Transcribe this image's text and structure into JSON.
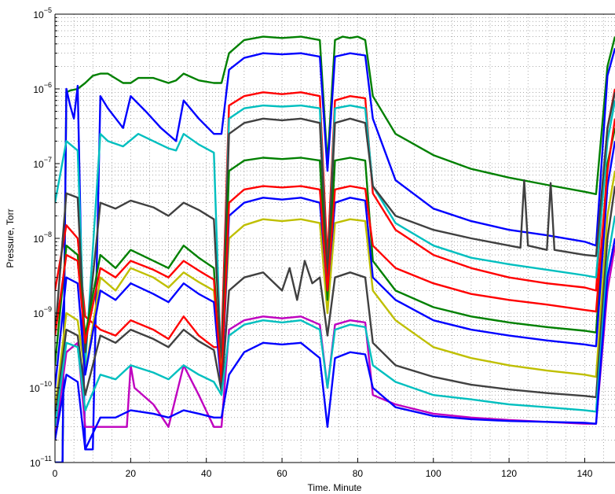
{
  "chart_data": {
    "type": "line",
    "title": "",
    "xlabel": "Time. Minute",
    "ylabel": "Pressure, Torr",
    "xlim": [
      0,
      148
    ],
    "ylim": [
      1e-11,
      1e-05
    ],
    "yscale": "log",
    "grid": true,
    "legend": "none",
    "x_ticks": [
      {
        "value": 0,
        "label": "0"
      },
      {
        "value": 20,
        "label": "20"
      },
      {
        "value": 40,
        "label": "40"
      },
      {
        "value": 60,
        "label": "60"
      },
      {
        "value": 80,
        "label": "80"
      },
      {
        "value": 100,
        "label": "100"
      },
      {
        "value": 120,
        "label": "120"
      },
      {
        "value": 140,
        "label": "140"
      }
    ],
    "y_ticks": [
      {
        "value": 1e-11,
        "base": "10",
        "exp": "−11"
      },
      {
        "value": 1e-10,
        "base": "10",
        "exp": "−10"
      },
      {
        "value": 1e-09,
        "base": "10",
        "exp": "−9"
      },
      {
        "value": 1e-08,
        "base": "10",
        "exp": "−8"
      },
      {
        "value": 1e-07,
        "base": "10",
        "exp": "−7"
      },
      {
        "value": 1e-06,
        "base": "10",
        "exp": "−6"
      },
      {
        "value": 1e-05,
        "base": "10",
        "exp": "−5"
      }
    ],
    "series": [
      {
        "color": "#008000",
        "x": [
          0,
          2,
          3,
          4,
          6,
          8,
          10,
          12,
          14,
          18,
          20,
          22,
          26,
          30,
          32,
          34,
          38,
          42,
          44,
          46,
          50,
          55,
          60,
          65,
          70,
          72,
          74,
          76,
          78,
          80,
          82,
          84,
          90,
          100,
          110,
          120,
          130,
          140,
          143,
          146,
          148
        ],
        "y": [
          1e-11,
          1e-11,
          9e-07,
          9.5e-07,
          1e-06,
          1.2e-06,
          1.5e-06,
          1.6e-06,
          1.6e-06,
          1.2e-06,
          1.2e-06,
          1.4e-06,
          1.4e-06,
          1.2e-06,
          1.3e-06,
          1.6e-06,
          1.3e-06,
          1.2e-06,
          1.2e-06,
          3e-06,
          4.5e-06,
          5e-06,
          4.8e-06,
          5e-06,
          4.5e-06,
          1e-07,
          4.5e-06,
          5e-06,
          4.8e-06,
          5e-06,
          4.5e-06,
          8e-07,
          2.5e-07,
          1.3e-07,
          8.5e-08,
          6.5e-08,
          5.2e-08,
          4.2e-08,
          3.9e-08,
          2e-06,
          5e-06
        ]
      },
      {
        "color": "#0000ff",
        "x": [
          0,
          2,
          3,
          4,
          5,
          6,
          8,
          10,
          12,
          14,
          18,
          20,
          24,
          28,
          32,
          34,
          38,
          42,
          44,
          46,
          50,
          55,
          60,
          65,
          70,
          72,
          74,
          78,
          82,
          84,
          90,
          100,
          110,
          120,
          130,
          140,
          143,
          146,
          148
        ],
        "y": [
          1e-11,
          1e-11,
          1e-06,
          6e-07,
          4e-07,
          1.1e-06,
          1.5e-11,
          1.5e-11,
          8e-07,
          5.5e-07,
          3e-07,
          8e-07,
          5e-07,
          3e-07,
          2e-07,
          7e-07,
          4e-07,
          2.5e-07,
          2.5e-07,
          1.8e-06,
          2.6e-06,
          3e-06,
          2.9e-06,
          3e-06,
          2.7e-06,
          8e-08,
          2.7e-06,
          3e-06,
          2.8e-06,
          4e-07,
          6e-08,
          2.5e-08,
          1.7e-08,
          1.3e-08,
          1.1e-08,
          9e-09,
          8e-09,
          1.5e-06,
          3.5e-06
        ]
      },
      {
        "color": "#ff0000",
        "x": [
          0,
          3,
          6,
          8,
          12,
          16,
          20,
          26,
          30,
          34,
          38,
          42,
          44,
          46,
          50,
          55,
          60,
          65,
          70,
          72,
          74,
          78,
          82,
          84,
          90,
          100,
          110,
          120,
          130,
          140,
          143,
          146,
          148
        ],
        "y": [
          2e-09,
          1.5e-08,
          1e-08,
          9e-10,
          6e-10,
          5e-10,
          8e-10,
          6e-10,
          4.5e-10,
          9e-10,
          5e-10,
          3.5e-10,
          3.5e-10,
          6e-07,
          8e-07,
          9e-07,
          8.5e-07,
          9e-07,
          8e-07,
          5e-09,
          7e-07,
          8e-07,
          7.5e-07,
          4e-08,
          1.3e-08,
          6e-09,
          4e-09,
          3e-09,
          2.5e-09,
          2.2e-09,
          2e-09,
          3e-07,
          1e-06
        ]
      },
      {
        "color": "#00bfbf",
        "x": [
          0,
          3,
          6,
          8,
          12,
          14,
          18,
          22,
          26,
          30,
          32,
          34,
          38,
          42,
          44,
          46,
          50,
          55,
          60,
          65,
          70,
          72,
          74,
          78,
          82,
          84,
          90,
          100,
          110,
          120,
          130,
          140,
          143,
          146,
          148
        ],
        "y": [
          3e-08,
          2e-07,
          1.5e-07,
          2e-10,
          2.5e-07,
          2e-07,
          1.7e-07,
          2.5e-07,
          2e-07,
          1.6e-07,
          1.5e-07,
          2.5e-07,
          1.8e-07,
          1.4e-07,
          1.3e-10,
          4e-07,
          5.5e-07,
          6e-07,
          5.8e-07,
          6e-07,
          5.5e-07,
          2.5e-09,
          5.5e-07,
          6e-07,
          5.5e-07,
          5e-08,
          1.6e-08,
          8e-09,
          5.5e-09,
          4.5e-09,
          3.8e-09,
          3.2e-09,
          3e-09,
          2e-07,
          7e-07
        ]
      },
      {
        "color": "#404040",
        "x": [
          0,
          3,
          6,
          8,
          12,
          16,
          20,
          26,
          30,
          34,
          38,
          42,
          44,
          46,
          50,
          55,
          60,
          65,
          70,
          72,
          74,
          78,
          82,
          84,
          90,
          100,
          110,
          120,
          123,
          124,
          125,
          130,
          131,
          132,
          140,
          143,
          146,
          148
        ],
        "y": [
          5e-10,
          4e-08,
          3.5e-08,
          3e-10,
          3e-08,
          2.5e-08,
          3.2e-08,
          2.6e-08,
          2e-08,
          3e-08,
          2.4e-08,
          1.8e-08,
          1.7e-10,
          2.5e-07,
          3.5e-07,
          4e-07,
          3.8e-07,
          4e-07,
          3.5e-07,
          3e-09,
          3.5e-07,
          4e-07,
          3.5e-07,
          5e-08,
          2e-08,
          1.3e-08,
          1e-08,
          8e-09,
          7.5e-09,
          6e-08,
          8e-09,
          7e-09,
          5.5e-08,
          7e-09,
          6e-09,
          5.8e-09,
          3e-07,
          9e-07
        ]
      },
      {
        "color": "#bf00bf",
        "x": [
          0,
          3,
          6,
          8,
          12,
          16,
          19,
          20,
          21,
          26,
          30,
          34,
          38,
          42,
          44,
          46,
          50,
          55,
          60,
          65,
          70,
          72,
          74,
          78,
          82,
          84,
          90,
          100,
          110,
          120,
          130,
          140,
          143,
          146,
          148
        ],
        "y": [
          2e-11,
          3e-10,
          4e-10,
          3e-11,
          3e-11,
          3e-11,
          3e-11,
          2e-10,
          1e-10,
          6e-11,
          3e-11,
          2e-10,
          8e-11,
          3e-11,
          3e-11,
          6e-10,
          8e-10,
          9e-10,
          8.5e-10,
          9e-10,
          7e-10,
          1e-10,
          7e-10,
          8e-10,
          7.5e-10,
          8e-11,
          6e-11,
          4.5e-11,
          4e-11,
          3.7e-11,
          3.5e-11,
          3.3e-11,
          3.3e-11,
          2e-09,
          8e-09
        ]
      },
      {
        "color": "#bfbf00",
        "x": [
          0,
          3,
          6,
          8,
          12,
          16,
          20,
          26,
          30,
          34,
          38,
          42,
          44,
          46,
          50,
          55,
          60,
          65,
          70,
          72,
          74,
          78,
          82,
          84,
          90,
          100,
          110,
          120,
          130,
          140,
          143,
          146,
          148
        ],
        "y": [
          5e-11,
          1e-09,
          8e-10,
          1.5e-10,
          3e-09,
          2e-09,
          4e-09,
          3e-09,
          2.2e-09,
          3.5e-09,
          2.6e-09,
          2e-09,
          1.5e-10,
          1e-08,
          1.5e-08,
          1.8e-08,
          1.7e-08,
          1.8e-08,
          1.6e-08,
          1e-09,
          1.6e-08,
          1.8e-08,
          1.7e-08,
          2e-09,
          8e-10,
          3.5e-10,
          2.5e-10,
          2e-10,
          1.7e-10,
          1.5e-10,
          1.4e-10,
          2e-08,
          8e-08
        ]
      },
      {
        "color": "#008000",
        "x": [
          0,
          3,
          6,
          8,
          12,
          16,
          20,
          26,
          30,
          34,
          38,
          42,
          44,
          46,
          50,
          55,
          60,
          65,
          70,
          72,
          74,
          78,
          82,
          84,
          90,
          100,
          110,
          120,
          130,
          140,
          143,
          146,
          148
        ],
        "y": [
          2e-10,
          8e-09,
          6e-09,
          5e-10,
          6e-09,
          4e-09,
          7e-09,
          5e-09,
          4e-09,
          8e-09,
          5.5e-09,
          4e-09,
          1e-10,
          8e-08,
          1.1e-07,
          1.2e-07,
          1.15e-07,
          1.2e-07,
          1.1e-07,
          1.5e-09,
          1.1e-07,
          1.2e-07,
          1.1e-07,
          5e-09,
          2e-09,
          1.2e-09,
          9e-10,
          7.5e-10,
          6.5e-10,
          5.8e-10,
          5.5e-10,
          1e-07,
          3e-07
        ]
      },
      {
        "color": "#0000ff",
        "x": [
          0,
          3,
          6,
          8,
          12,
          16,
          20,
          26,
          30,
          34,
          38,
          42,
          44,
          46,
          50,
          55,
          60,
          65,
          70,
          72,
          74,
          78,
          82,
          84,
          90,
          100,
          110,
          120,
          130,
          140,
          143,
          146,
          148
        ],
        "y": [
          1e-10,
          3e-09,
          2.5e-09,
          1.5e-10,
          2e-09,
          1.5e-09,
          2.5e-09,
          1.8e-09,
          1.4e-09,
          2.5e-09,
          1.8e-09,
          1.4e-09,
          1e-10,
          2e-08,
          3e-08,
          3.5e-08,
          3.3e-08,
          3.5e-08,
          3e-08,
          2e-09,
          3e-08,
          3.5e-08,
          3.2e-08,
          3e-09,
          1.5e-09,
          8e-10,
          6e-10,
          5e-10,
          4.3e-10,
          3.8e-10,
          3.6e-10,
          5e-08,
          2e-07
        ]
      },
      {
        "color": "#ff0000",
        "x": [
          0,
          3,
          6,
          8,
          12,
          16,
          20,
          26,
          30,
          34,
          38,
          42,
          44,
          46,
          50,
          55,
          60,
          65,
          70,
          72,
          74,
          78,
          82,
          84,
          90,
          100,
          110,
          120,
          130,
          140,
          143,
          146,
          148
        ],
        "y": [
          5e-10,
          6e-09,
          5e-09,
          4e-10,
          4e-09,
          3e-09,
          5e-09,
          3.8e-09,
          3e-09,
          5e-09,
          3.7e-09,
          2.8e-09,
          1.2e-10,
          3e-08,
          4.5e-08,
          5e-08,
          4.8e-08,
          5e-08,
          4.5e-08,
          2e-09,
          4.5e-08,
          5e-08,
          4.6e-08,
          8e-09,
          4e-09,
          2.5e-09,
          1.8e-09,
          1.5e-09,
          1.3e-09,
          1.1e-09,
          1.05e-09,
          8e-08,
          4e-07
        ]
      },
      {
        "color": "#404040",
        "x": [
          0,
          3,
          6,
          8,
          12,
          16,
          20,
          26,
          30,
          34,
          38,
          42,
          44,
          46,
          50,
          55,
          60,
          62,
          64,
          66,
          68,
          70,
          72,
          74,
          78,
          82,
          84,
          90,
          100,
          110,
          120,
          130,
          140,
          143,
          146,
          148
        ],
        "y": [
          4e-11,
          6e-10,
          5e-10,
          8e-11,
          5e-10,
          4e-10,
          6e-10,
          4.5e-10,
          3.5e-10,
          6e-10,
          4.2e-10,
          3.2e-10,
          9e-11,
          2e-09,
          3e-09,
          3.5e-09,
          2e-09,
          4e-09,
          1.5e-09,
          5e-09,
          2.5e-09,
          3e-09,
          5e-10,
          3e-09,
          3.5e-09,
          3e-09,
          4e-10,
          2e-10,
          1.4e-10,
          1.1e-10,
          9.5e-11,
          8.5e-11,
          7.8e-11,
          7.5e-11,
          1e-08,
          5e-08
        ]
      },
      {
        "color": "#00bfbf",
        "x": [
          0,
          3,
          6,
          8,
          12,
          16,
          20,
          26,
          30,
          34,
          38,
          42,
          44,
          46,
          50,
          55,
          60,
          65,
          70,
          72,
          74,
          78,
          82,
          84,
          90,
          100,
          110,
          120,
          130,
          140,
          143,
          146,
          148
        ],
        "y": [
          3e-11,
          4e-10,
          3.5e-10,
          5e-11,
          1.5e-10,
          1.3e-10,
          2e-10,
          1.6e-10,
          1.3e-10,
          2e-10,
          1.5e-10,
          1.2e-10,
          8e-11,
          5e-10,
          7e-10,
          8e-10,
          7.5e-10,
          8e-10,
          6e-10,
          1e-10,
          6e-10,
          7e-10,
          6.5e-10,
          2e-10,
          1.2e-10,
          8e-11,
          7e-11,
          6e-11,
          5.5e-11,
          5e-11,
          4.8e-11,
          5e-09,
          2e-08
        ]
      },
      {
        "color": "#0000ff",
        "x": [
          0,
          3,
          6,
          8,
          12,
          16,
          20,
          26,
          30,
          34,
          38,
          42,
          44,
          46,
          50,
          55,
          60,
          65,
          70,
          72,
          74,
          78,
          82,
          84,
          90,
          100,
          110,
          120,
          130,
          140,
          143,
          146,
          148
        ],
        "y": [
          2e-11,
          1.5e-10,
          1.2e-10,
          1.5e-11,
          4e-11,
          4e-11,
          5e-11,
          4.5e-11,
          4e-11,
          5e-11,
          4.5e-11,
          4e-11,
          4e-11,
          1.5e-10,
          3e-10,
          4e-10,
          3.8e-10,
          4e-10,
          2.5e-10,
          3e-11,
          2.5e-10,
          3e-10,
          2.8e-10,
          1e-10,
          5.5e-11,
          4.2e-11,
          3.8e-11,
          3.6e-11,
          3.5e-11,
          3.4e-11,
          3.3e-11,
          3e-09,
          1e-08
        ]
      }
    ]
  }
}
